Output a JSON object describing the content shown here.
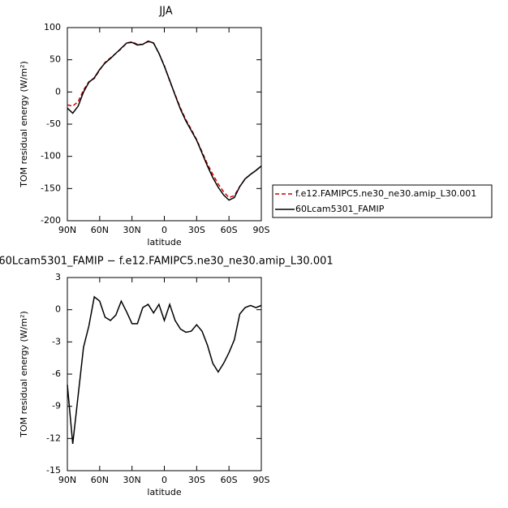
{
  "chart_data": [
    {
      "type": "line",
      "title": "JJA",
      "xlabel": "latitude",
      "ylabel": "TOM residual energy (W/m²)",
      "x": [
        90,
        85,
        80,
        75,
        70,
        65,
        60,
        55,
        50,
        45,
        40,
        35,
        30,
        25,
        20,
        15,
        10,
        5,
        0,
        -5,
        -10,
        -15,
        -20,
        -25,
        -30,
        -35,
        -40,
        -45,
        -50,
        -55,
        -60,
        -65,
        -70,
        -75,
        -80,
        -85,
        -90
      ],
      "series": [
        {
          "name": "f.e12.FAMIPC5.ne30_ne30.amip_L30.001",
          "color": "#cc0000",
          "dash": true,
          "values": [
            -20,
            -22,
            -15,
            3,
            16,
            21,
            34,
            46,
            53,
            60,
            67,
            76,
            78,
            74,
            74,
            78,
            76,
            60,
            41,
            17,
            -4,
            -25,
            -43,
            -58,
            -74,
            -93,
            -112,
            -128,
            -143,
            -155,
            -164,
            -161,
            -147,
            -135,
            -128,
            -122,
            -115
          ]
        },
        {
          "name": "60Lcam5301_FAMIP",
          "color": "#000000",
          "dash": false,
          "values": [
            -25,
            -33,
            -22,
            0,
            15,
            22,
            35,
            45,
            52,
            60,
            68,
            76,
            77,
            73,
            74,
            79,
            76,
            60,
            40,
            18,
            -5,
            -27,
            -45,
            -60,
            -75,
            -95,
            -115,
            -133,
            -148,
            -160,
            -168,
            -164,
            -147,
            -135,
            -128,
            -122,
            -115
          ]
        }
      ],
      "xlim": [
        90,
        -90
      ],
      "xticks": [
        {
          "value": 90,
          "label": "90N"
        },
        {
          "value": 60,
          "label": "60N"
        },
        {
          "value": 30,
          "label": "30N"
        },
        0,
        {
          "value": -30,
          "label": "30S"
        },
        {
          "value": -60,
          "label": "60S"
        },
        {
          "value": -90,
          "label": "90S"
        }
      ],
      "ylim": [
        -200,
        100
      ],
      "yticks": [
        100,
        50,
        0,
        -50,
        -100,
        -150,
        -200
      ],
      "legend": "right"
    },
    {
      "type": "line",
      "title": "60Lcam5301_FAMIP − f.e12.FAMIPC5.ne30_ne30.amip_L30.001",
      "xlabel": "latitude",
      "ylabel": "TOM residual energy (W/m²)",
      "x": [
        90,
        85,
        80,
        75,
        70,
        65,
        60,
        55,
        50,
        45,
        40,
        35,
        30,
        25,
        20,
        15,
        10,
        5,
        0,
        -5,
        -10,
        -15,
        -20,
        -25,
        -30,
        -35,
        -40,
        -45,
        -50,
        -55,
        -60,
        -65,
        -70,
        -75,
        -80,
        -85,
        -90
      ],
      "series": [
        {
          "color": "#000000",
          "dash": false,
          "values": [
            -7,
            -12.5,
            -8,
            -3.5,
            -1.5,
            1.2,
            0.8,
            -0.7,
            -1,
            -0.5,
            0.8,
            -0.2,
            -1.3,
            -1.3,
            0.2,
            0.5,
            -0.3,
            0.5,
            -1,
            0.5,
            -1,
            -1.8,
            -2.1,
            -2,
            -1.4,
            -2,
            -3.3,
            -5,
            -5.8,
            -5,
            -4,
            -2.8,
            -0.4,
            0.2,
            0.4,
            0.2,
            0.4
          ]
        }
      ],
      "xlim": [
        90,
        -90
      ],
      "xticks": [
        {
          "value": 90,
          "label": "90N"
        },
        {
          "value": 60,
          "label": "60N"
        },
        {
          "value": 30,
          "label": "30N"
        },
        0,
        {
          "value": -30,
          "label": "30S"
        },
        {
          "value": -60,
          "label": "60S"
        },
        {
          "value": -90,
          "label": "90S"
        }
      ],
      "ylim": [
        -15,
        3
      ],
      "yticks": [
        3,
        0,
        -3,
        -6,
        -9,
        -12,
        -15
      ]
    }
  ]
}
